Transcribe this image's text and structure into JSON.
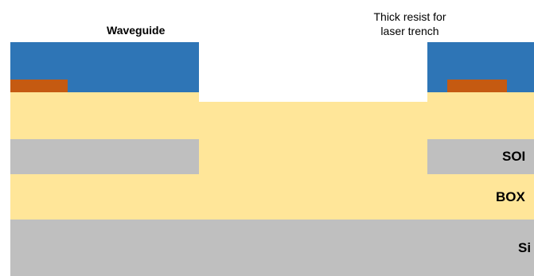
{
  "labels": {
    "waveguide": "Waveguide",
    "resist_line1": "Thick resist for",
    "resist_line2": "laser trench",
    "soi": "SOI",
    "box": "BOX",
    "si": "Si"
  },
  "colors": {
    "resist": "#2e75b6",
    "metal": "#c55a11",
    "oxide": "#ffe699",
    "silicon": "#bfbfbf",
    "background": "#ffffff"
  }
}
